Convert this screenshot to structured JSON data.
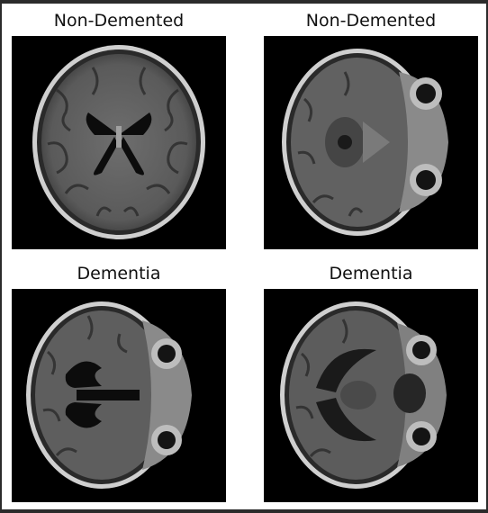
{
  "panels": [
    {
      "title": "Non-Demented",
      "view": "axial-ventricles"
    },
    {
      "title": "Non-Demented",
      "view": "axial-orbits"
    },
    {
      "title": "Dementia",
      "view": "axial-enlarged-ventricles"
    },
    {
      "title": "Dementia",
      "view": "axial-orbits-atrophy"
    }
  ],
  "colors": {
    "background": "#ffffff",
    "image_background": "#000000",
    "brain_tissue": "#6b6b6b",
    "skull": "#c8c8c8",
    "csf": "#0a0a0a"
  }
}
